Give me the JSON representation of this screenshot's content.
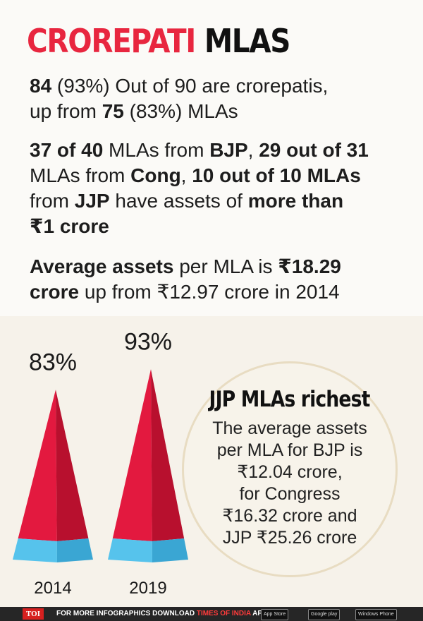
{
  "header": {
    "title_red": "CROREPATI",
    "title_black": "MLAS"
  },
  "paragraphs": {
    "p1": {
      "b1": "84",
      "t1": " (93%) Out of 90 are crorepatis,",
      "t2": "up from ",
      "b2": "75",
      "t3": " (83%) MLAs"
    },
    "p2": {
      "b1": "37 of 40",
      "t1": " MLAs from ",
      "b2": "BJP",
      "t2": ", ",
      "b3": "29  out of 31",
      "t3": "MLAs from ",
      "b4": "Cong",
      "t4": ", ",
      "b5": "10 out of 10 MLAs",
      "t5": "from ",
      "b6": "JJP",
      "t6": " have assets of ",
      "b7": "more than",
      "b8": "₹1 crore"
    },
    "p3": {
      "b1": "Average assets",
      "t1": " per MLA is ",
      "b2": "₹18.29",
      "b3": "crore",
      "t2": " up from ₹12.97 crore in 2014"
    }
  },
  "callout": {
    "title": "JJP MLAs richest",
    "body": "The average assets\nper MLA for BJP is\n₹12.04 crore,\nfor Congress\n₹16.32 crore and\nJJP ₹25.26 crore"
  },
  "chart_data": {
    "type": "bar",
    "categories": [
      "2014",
      "2019"
    ],
    "values": [
      83,
      93
    ],
    "value_labels": [
      "83%",
      "93%"
    ],
    "ylim": [
      0,
      100
    ],
    "colors": {
      "crorepati": "#e3193f",
      "crorepati_shade": "#b8102e",
      "rest": "#56c3ec",
      "rest_shade": "#3aa6d3"
    }
  },
  "footer": {
    "badge": "TOI",
    "text_white": "FOR MORE  INFOGRAPHICS DOWNLOAD ",
    "text_brand": "TIMES OF INDIA",
    "text_end": " APP",
    "stores": [
      "App Store",
      "Google play",
      "Windows Phone"
    ]
  }
}
